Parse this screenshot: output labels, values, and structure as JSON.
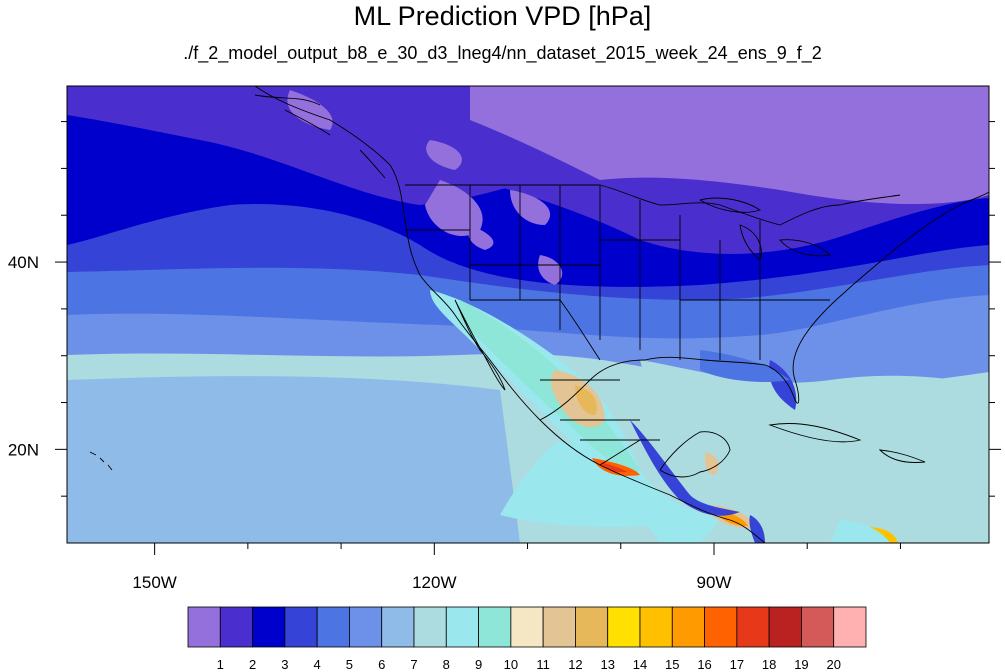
{
  "title": "ML Prediction VPD [hPa]",
  "subtitle": "./f_2_model_output_b8_e_30_d3_lneg4/nn_dataset_2015_week_24_ens_9_f_2",
  "map": {
    "lon_range": [
      -159.4,
      -60.5
    ],
    "lat_range": [
      10,
      58.8
    ],
    "lon_ticks": [
      {
        "value": -150,
        "label": "150W"
      },
      {
        "value": -120,
        "label": "120W"
      },
      {
        "value": -90,
        "label": "90W"
      }
    ],
    "lat_ticks": [
      {
        "value": 40,
        "label": "40N"
      },
      {
        "value": 20,
        "label": "20N"
      }
    ],
    "minor_lon_step": 10,
    "minor_lat_step": 5
  },
  "colorbar": {
    "colors": [
      "#9370db",
      "#4b2fce",
      "#0000cd",
      "#3543d6",
      "#4d74e3",
      "#6d90e8",
      "#8fbbe8",
      "#acdce0",
      "#9ae8ee",
      "#8ee6d8",
      "#f5e6c4",
      "#e3c495",
      "#e6b85a",
      "#ffe000",
      "#ffc000",
      "#ff9a00",
      "#ff6200",
      "#e8381a",
      "#ba2222",
      "#d45a5a",
      "#ffb0b0"
    ],
    "labels": [
      "1",
      "2",
      "3",
      "4",
      "5",
      "6",
      "7",
      "8",
      "9",
      "10",
      "11",
      "12",
      "13",
      "14",
      "15",
      "16",
      "17",
      "18",
      "19",
      "20"
    ]
  }
}
